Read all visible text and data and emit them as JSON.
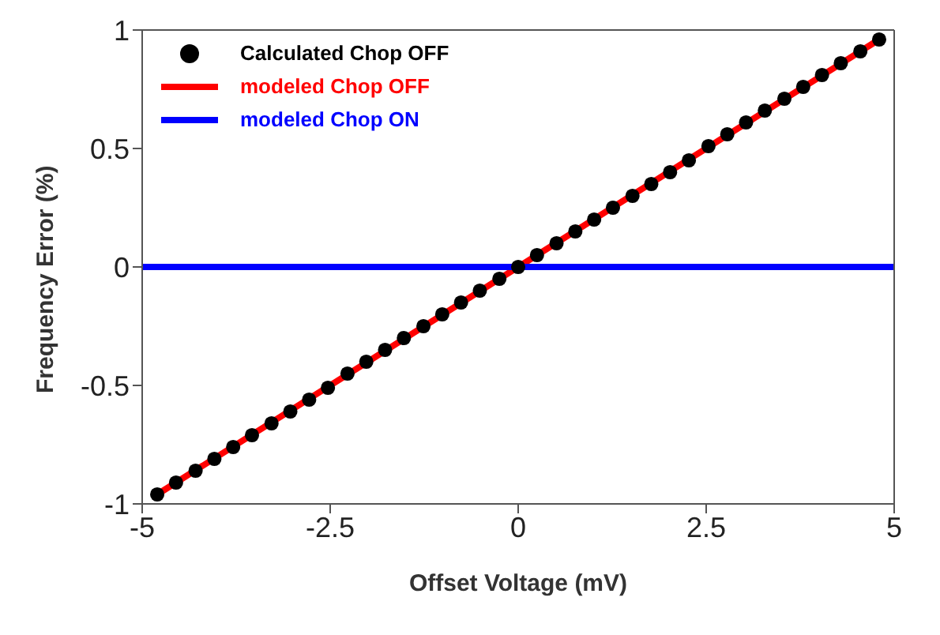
{
  "chart_data": {
    "type": "line",
    "xlabel": "Offset Voltage (mV)",
    "ylabel": "Frequency Error (%)",
    "xlim": [
      -5,
      5
    ],
    "xticks": [
      -5,
      -2.5,
      0,
      2.5,
      5
    ],
    "ylim": [
      -1,
      1
    ],
    "yticks": [
      -1,
      -0.5,
      0,
      0.5,
      1
    ],
    "legend": "top left",
    "series": [
      {
        "name": "Calculated Chop OFF",
        "type": "scatter",
        "marker": "circle",
        "color": "#000000",
        "x": [
          -4.8,
          -4.55,
          -4.29,
          -4.04,
          -3.79,
          -3.54,
          -3.28,
          -3.03,
          -2.78,
          -2.53,
          -2.27,
          -2.02,
          -1.77,
          -1.52,
          -1.26,
          -1.01,
          -0.76,
          -0.51,
          -0.25,
          0,
          0.25,
          0.51,
          0.76,
          1.01,
          1.26,
          1.52,
          1.77,
          2.02,
          2.27,
          2.53,
          2.78,
          3.03,
          3.28,
          3.54,
          3.79,
          4.04,
          4.29,
          4.55,
          4.8
        ],
        "values": [
          -0.96,
          -0.91,
          -0.86,
          -0.81,
          -0.76,
          -0.71,
          -0.66,
          -0.61,
          -0.56,
          -0.51,
          -0.45,
          -0.4,
          -0.35,
          -0.3,
          -0.25,
          -0.2,
          -0.15,
          -0.1,
          -0.05,
          0,
          0.05,
          0.1,
          0.15,
          0.2,
          0.25,
          0.3,
          0.35,
          0.4,
          0.45,
          0.51,
          0.56,
          0.61,
          0.66,
          0.71,
          0.76,
          0.81,
          0.86,
          0.91,
          0.96
        ]
      },
      {
        "name": "modeled Chop OFF",
        "color": "#ff0000",
        "line_style": "solid",
        "x": [
          -4.8,
          4.8
        ],
        "values": [
          -0.96,
          0.96
        ]
      },
      {
        "name": "modeled Chop ON",
        "color": "#0000ff",
        "line_style": "solid",
        "x": [
          -5,
          5
        ],
        "values": [
          0,
          0
        ]
      }
    ]
  }
}
